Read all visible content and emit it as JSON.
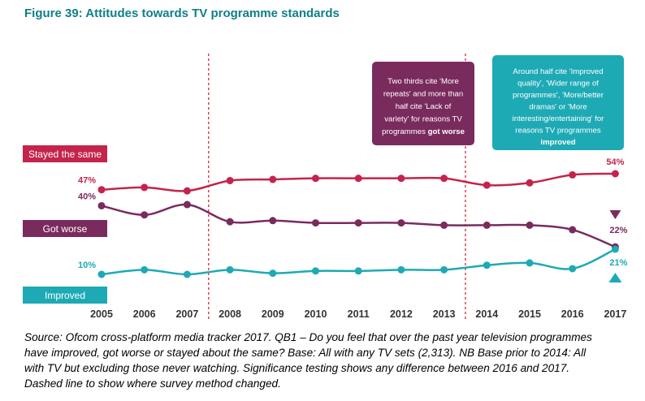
{
  "title": "Figure 39: Attitudes towards TV programme standards",
  "chart_data": {
    "type": "line",
    "categories": [
      "2005",
      "2006",
      "2007",
      "2008",
      "2009",
      "2010",
      "2011",
      "2012",
      "2013",
      "2014",
      "2015",
      "2016",
      "2017"
    ],
    "series": [
      {
        "name": "Stayed the same",
        "color": "#c4244b",
        "values": [
          47,
          48,
          46.5,
          51,
          51.5,
          52,
          52,
          52,
          52,
          49,
          50,
          53.5,
          54
        ],
        "start_label": "47%",
        "end_label": "54%"
      },
      {
        "name": "Got worse",
        "color": "#7a2b5e",
        "values": [
          40,
          36,
          40.5,
          33,
          33.5,
          32.5,
          32.5,
          32.5,
          31.5,
          31.5,
          31.5,
          29.5,
          22
        ],
        "start_label": "40%",
        "end_label": "22%"
      },
      {
        "name": "Improved",
        "color": "#1eaab5",
        "values": [
          10,
          12,
          10,
          12,
          10.5,
          11.5,
          11.5,
          12,
          12,
          14,
          15,
          12.5,
          21
        ],
        "start_label": "10%",
        "end_label": "21%"
      }
    ],
    "ylim": [
      0,
      60
    ],
    "dashed_dividers_after": [
      "2007",
      "2013"
    ],
    "annotations": [
      {
        "id": "worse-note",
        "color": "#7a2b5e",
        "lines": [
          "Two thirds cite 'More",
          "repeats' and more than",
          "half cite 'Lack of",
          "variety' for reasons TV",
          "programmes got worse"
        ],
        "bold_phrase": "got worse"
      },
      {
        "id": "improved-note",
        "color": "#1eaab5",
        "lines": [
          "Around half  cite 'Improved",
          "quality', 'Wider range of",
          "programmes', 'More/better",
          "dramas' or 'More",
          "interesting/entertaining' for",
          "reasons TV programmes",
          "improved"
        ],
        "bold_phrase": "improved"
      }
    ]
  },
  "source_note": "Source: Ofcom cross-platform media tracker 2017. QB1 – Do you feel that over the past year television programmes have improved, got worse or stayed about the same? Base: All with any TV sets (2,313). NB Base prior to 2014: All with TV but excluding those never watching. Significance testing shows any difference between 2016 and 2017. Dashed line to show where survey method changed."
}
